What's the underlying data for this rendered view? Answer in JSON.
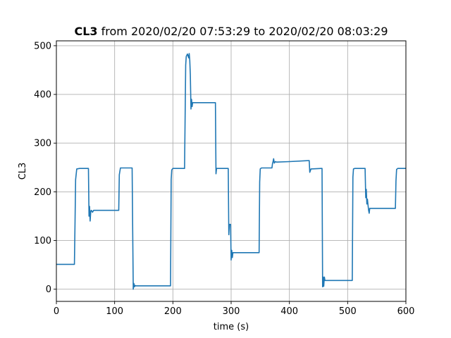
{
  "chart_data": {
    "type": "line",
    "title_bold": "CL3",
    "title_rest": " from 2020/02/20 07:53:29 to 2020/02/20 08:03:29",
    "xlabel": "time (s)",
    "ylabel": "CL3",
    "xlim": [
      0,
      600
    ],
    "ylim": [
      -25,
      510
    ],
    "xticks": [
      0,
      100,
      200,
      300,
      400,
      500,
      600
    ],
    "yticks": [
      0,
      100,
      200,
      300,
      400,
      500
    ],
    "grid": true,
    "color": "#1f77b4",
    "series": [
      {
        "x": [
          0,
          31,
          32,
          33,
          35,
          40,
          55,
          56,
          57,
          58,
          59,
          60,
          62,
          64,
          65,
          70,
          107,
          108,
          110,
          113,
          130,
          131,
          132,
          133,
          134,
          135,
          136,
          140,
          196,
          197,
          198,
          200,
          220,
          222,
          223,
          225,
          227,
          228,
          229,
          230,
          231,
          232,
          233,
          234,
          236,
          273,
          274,
          275,
          277,
          295,
          296,
          297,
          298,
          299,
          300,
          301,
          302,
          303,
          304,
          305,
          306,
          348,
          349,
          350,
          352,
          370,
          371,
          372,
          373,
          374,
          376,
          378,
          400,
          433,
          434,
          435,
          437,
          455,
          456,
          457,
          458,
          459,
          460,
          461,
          462,
          463,
          508,
          509,
          510,
          512,
          530,
          531,
          532,
          533,
          534,
          535,
          536,
          537,
          538,
          540,
          582,
          583,
          584,
          586,
          600
        ],
        "y": [
          51,
          51,
          140,
          225,
          247,
          248,
          248,
          150,
          170,
          140,
          160,
          162,
          158,
          162,
          162,
          162,
          162,
          235,
          249,
          249,
          249,
          120,
          0,
          12,
          5,
          8,
          7,
          7,
          7,
          225,
          245,
          248,
          248,
          460,
          478,
          483,
          475,
          484,
          470,
          440,
          370,
          390,
          375,
          383,
          383,
          383,
          237,
          248,
          248,
          248,
          112,
          133,
          133,
          133,
          60,
          80,
          65,
          75,
          75,
          75,
          75,
          75,
          220,
          247,
          249,
          249,
          258,
          262,
          268,
          259,
          262,
          261,
          262,
          264,
          264,
          240,
          247,
          248,
          248,
          5,
          25,
          6,
          25,
          18,
          18,
          18,
          18,
          230,
          247,
          248,
          248,
          188,
          205,
          175,
          185,
          172,
          162,
          156,
          166,
          166,
          166,
          222,
          246,
          248,
          248
        ]
      }
    ]
  }
}
